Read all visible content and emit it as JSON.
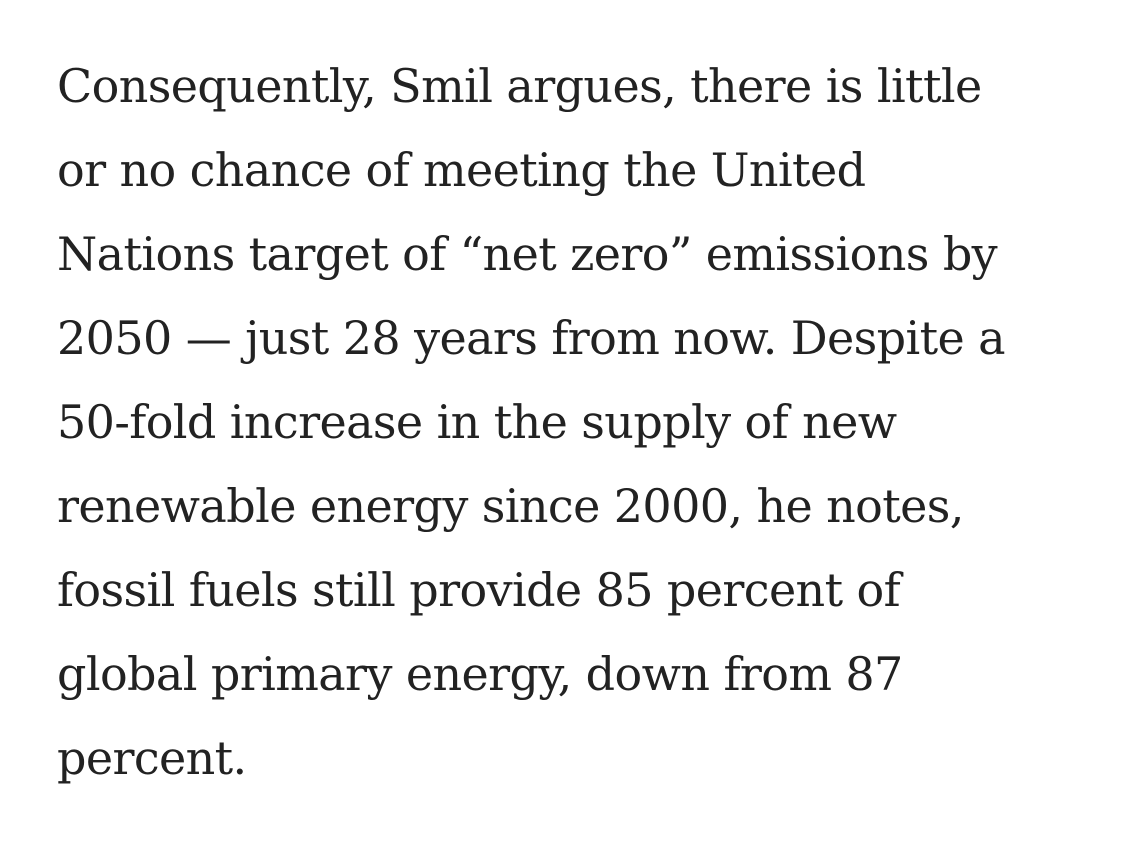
{
  "article": {
    "paragraph_lines": [
      "Consequently, Smil argues, there is little",
      "or no chance of meeting the United",
      "Nations target of “net zero” emissions by",
      "2050 — just 28 years from now. Despite a",
      "50-fold increase in the supply of new",
      "renewable energy since 2000, he notes,",
      "fossil fuels still provide 85 percent of",
      "global primary energy, down from 87",
      "percent."
    ]
  }
}
